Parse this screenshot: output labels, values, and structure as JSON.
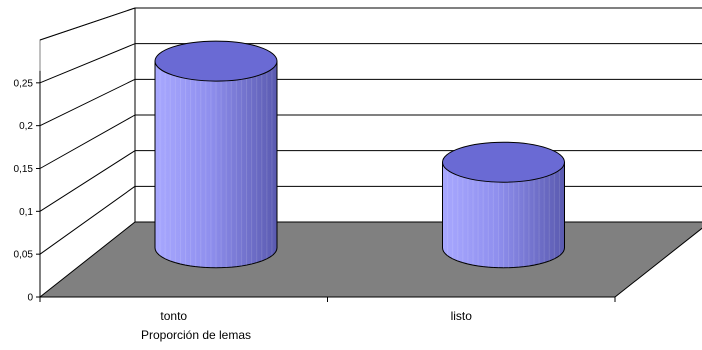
{
  "chart_data": {
    "type": "bar",
    "style": "3d-cylinder",
    "categories": [
      "tonto",
      "listo"
    ],
    "series": [
      {
        "values": [
          0.24,
          0.11
        ],
        "color": "#9999ff"
      }
    ],
    "xlabel": "Proporción de lemas",
    "ylabel": "",
    "title": "",
    "ylim": [
      0,
      0.3
    ],
    "yticks": [
      "0",
      "0,05",
      "0,1",
      "0,15",
      "0,2",
      "0,25"
    ],
    "grid": true,
    "legend": "none",
    "colors": {
      "floor": "#808080",
      "bar_light": "#9999ff",
      "bar_dark": "#5555aa",
      "bar_top": "#6a6ad4",
      "outline": "#000000",
      "gridline": "#000000",
      "background": "#ffffff"
    }
  }
}
